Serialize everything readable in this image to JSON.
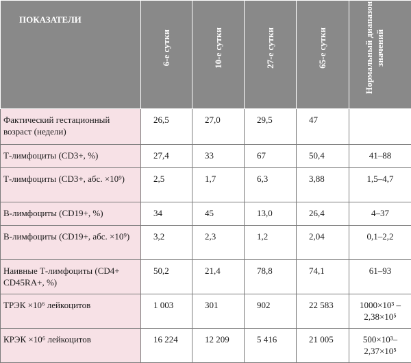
{
  "table": {
    "header": {
      "indicator": "ПОКАЗАТЕЛИ",
      "day6": "6-е сутки",
      "day10": "10-е сутки",
      "day27": "27-е сутки",
      "day65": "65-е сутки",
      "normal": "Нормальный диапазон значений"
    },
    "header_colors": {
      "background": "#898989",
      "text": "#ffffff"
    },
    "label_background": "#f7e1e6",
    "rows": [
      {
        "label": "Фактический гестационный возраст (недели)",
        "d6": "26,5",
        "d10": "27,0",
        "d27": "29,5",
        "d65": "47",
        "normal": ""
      },
      {
        "label": "Т-лимфоциты (CD3+, %)",
        "d6": "27,4",
        "d10": "33",
        "d27": "67",
        "d65": "50,4",
        "normal": "41–88"
      },
      {
        "label": "Т-лимфоциты (CD3+, абс. ×10⁹)",
        "d6": "2,5",
        "d10": "1,7",
        "d27": "6,3",
        "d65": "3,88",
        "normal": "1,5–4,7"
      },
      {
        "label": "В-лимфоциты (CD19+, %)",
        "d6": "34",
        "d10": "45",
        "d27": "13,0",
        "d65": "26,4",
        "normal": "4–37"
      },
      {
        "label": "В-лимфоциты (CD19+, абс. ×10⁹)",
        "d6": "3,2",
        "d10": "2,3",
        "d27": "1,2",
        "d65": "2,04",
        "normal": "0,1–2,2"
      },
      {
        "label": "Наивные Т-лимфоциты (CD4+ CD45RA+, %)",
        "d6": "50,2",
        "d10": "21,4",
        "d27": "78,8",
        "d65": "74,1",
        "normal": "61–93"
      },
      {
        "label": "ТРЭК ×10⁶ лейкоцитов",
        "d6": "1 003",
        "d10": "301",
        "d27": "902",
        "d65": "22 583",
        "normal": "1000×10³ – 2,38×10⁵"
      },
      {
        "label": "КРЭК ×10⁶ лейкоцитов",
        "d6": "16 224",
        "d10": "12 209",
        "d27": "5 416",
        "d65": "21 005",
        "normal": "500×10³– 2,37×10⁵"
      }
    ]
  }
}
